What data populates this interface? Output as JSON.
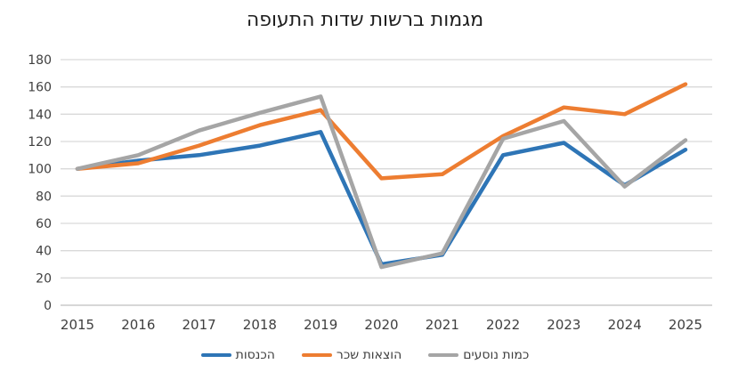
{
  "chart": {
    "title": "מגמות ברשות שדות התעופה"
  },
  "chart_data": {
    "type": "line",
    "title": "מגמות ברשות שדות התעופה",
    "categories": [
      "2015",
      "2016",
      "2017",
      "2018",
      "2019",
      "2020",
      "2021",
      "2022",
      "2023",
      "2024",
      "2025"
    ],
    "series": [
      {
        "id": "revenues",
        "name": "הכנסות",
        "color": "#2E75B6",
        "values": [
          100,
          106,
          110,
          117,
          127,
          30,
          37,
          110,
          119,
          88,
          114
        ]
      },
      {
        "id": "salary-expenses",
        "name": "הוצאות שכר",
        "color": "#ED7D31",
        "values": [
          100,
          104,
          117,
          132,
          143,
          93,
          96,
          124,
          145,
          140,
          162
        ]
      },
      {
        "id": "passenger-volume",
        "name": "כמות נוסעים",
        "color": "#A5A5A5",
        "values": [
          100,
          110,
          128,
          141,
          153,
          28,
          38,
          122,
          135,
          87,
          121
        ]
      }
    ],
    "ylim": [
      0,
      180
    ],
    "ytick_step": 20,
    "yticks": [
      0,
      20,
      40,
      60,
      80,
      100,
      120,
      140,
      160,
      180
    ],
    "grid": true,
    "legend_position": "bottom",
    "gridline_color": "#D9D9D9",
    "axis_line_color": "#BFBFBF",
    "tick_label_color": "#3f3f3f",
    "tick_label_size_y": 14,
    "tick_label_size_x": 15,
    "line_width": 4.5
  }
}
